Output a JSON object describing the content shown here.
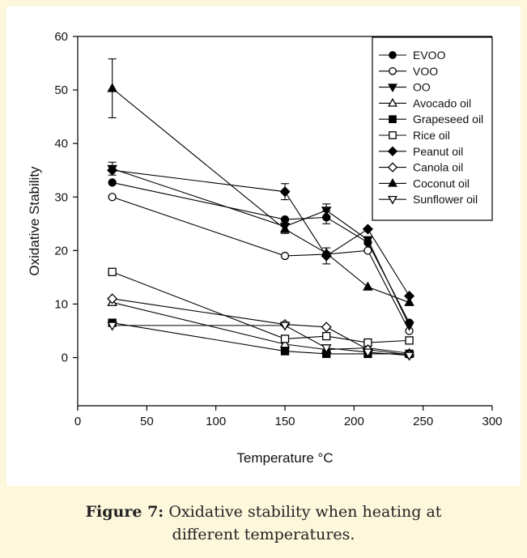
{
  "chart_data": {
    "type": "line",
    "title": "",
    "xlabel": "Temperature °C",
    "ylabel": "Oxidative Stability",
    "xlim": [
      0,
      300
    ],
    "ylim": [
      -9,
      60
    ],
    "xticks": [
      0,
      50,
      100,
      150,
      200,
      250,
      300
    ],
    "yticks": [
      0,
      10,
      20,
      30,
      40,
      50,
      60
    ],
    "grid": false,
    "legend_position": "top-right",
    "x": [
      25,
      150,
      180,
      210,
      240
    ],
    "series": [
      {
        "name": "EVOO",
        "marker": "circle",
        "filled": true,
        "values": [
          32.7,
          25.8,
          26.2,
          21.5,
          6.5
        ],
        "errors": [
          0,
          0,
          1.2,
          0,
          0
        ]
      },
      {
        "name": "VOO",
        "marker": "circle",
        "filled": false,
        "values": [
          30.0,
          19.0,
          19.3,
          20.0,
          5.0
        ],
        "errors": [
          0,
          0,
          0,
          0,
          0
        ]
      },
      {
        "name": "OO",
        "marker": "triangle-down",
        "filled": true,
        "values": [
          35.3,
          24.5,
          27.5,
          22.0,
          6.0
        ],
        "errors": [
          1.2,
          0,
          1.2,
          0,
          0
        ]
      },
      {
        "name": "Avocado oil",
        "marker": "triangle-up",
        "filled": false,
        "values": [
          10.3,
          2.5,
          1.5,
          1.8,
          0.8
        ],
        "errors": [
          0,
          0,
          0,
          0,
          0
        ]
      },
      {
        "name": "Grapeseed oil",
        "marker": "square",
        "filled": true,
        "values": [
          6.5,
          1.2,
          0.7,
          0.7,
          0.7
        ],
        "errors": [
          0,
          0,
          0,
          0,
          0
        ]
      },
      {
        "name": "Rice oil",
        "marker": "square",
        "filled": false,
        "values": [
          16.0,
          3.5,
          4.0,
          2.8,
          3.2
        ],
        "errors": [
          0,
          0,
          0,
          0,
          0
        ]
      },
      {
        "name": "Peanut oil",
        "marker": "diamond",
        "filled": true,
        "values": [
          35.0,
          31.0,
          19.0,
          24.0,
          11.5
        ],
        "errors": [
          0,
          1.5,
          1.5,
          0,
          0
        ]
      },
      {
        "name": "Canola oil",
        "marker": "diamond",
        "filled": false,
        "values": [
          11.0,
          6.2,
          5.7,
          1.5,
          0.5
        ],
        "errors": [
          0,
          0,
          0,
          0,
          0
        ]
      },
      {
        "name": "Coconut oil",
        "marker": "triangle-up",
        "filled": true,
        "values": [
          50.3,
          24.0,
          19.5,
          13.2,
          10.3
        ],
        "errors": [
          5.5,
          0.8,
          0,
          0,
          0
        ]
      },
      {
        "name": "Sunflower oil",
        "marker": "triangle-down",
        "filled": false,
        "values": [
          6.0,
          6.0,
          1.8,
          1.0,
          0.4
        ],
        "errors": [
          0,
          0,
          0,
          0,
          0
        ]
      }
    ]
  },
  "caption": {
    "label": "Figure 7:",
    "line1": " Oxidative stability when heating at",
    "line2": "different temperatures."
  }
}
